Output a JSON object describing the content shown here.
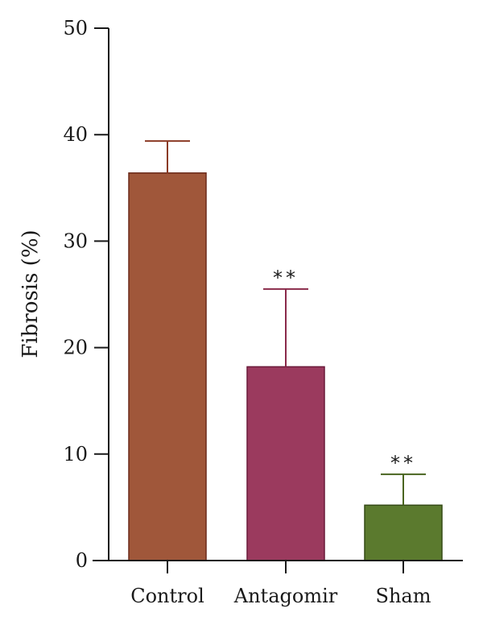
{
  "chart_data": {
    "type": "bar",
    "ylabel": "Fibrosis (%)",
    "ylim": [
      0,
      50
    ],
    "yticks": [
      "0",
      "10",
      "20",
      "30",
      "40",
      "50"
    ],
    "grid": false,
    "categories": [
      "Control",
      "Antagomir",
      "Sham"
    ],
    "values": [
      36.4,
      18.2,
      5.2
    ],
    "errors": [
      3.0,
      7.3,
      2.9
    ],
    "annotations": [
      "",
      "**",
      "**"
    ],
    "colors": {
      "bars": [
        "#a0573a",
        "#9b3a5e",
        "#5b7a2e"
      ],
      "edges": [
        "#6b2a1a",
        "#6a1a3a",
        "#344a15"
      ],
      "errorbars": [
        "#8b3a24",
        "#8a2a4a",
        "#4a6520"
      ],
      "axis": "#1a1a1a"
    }
  }
}
